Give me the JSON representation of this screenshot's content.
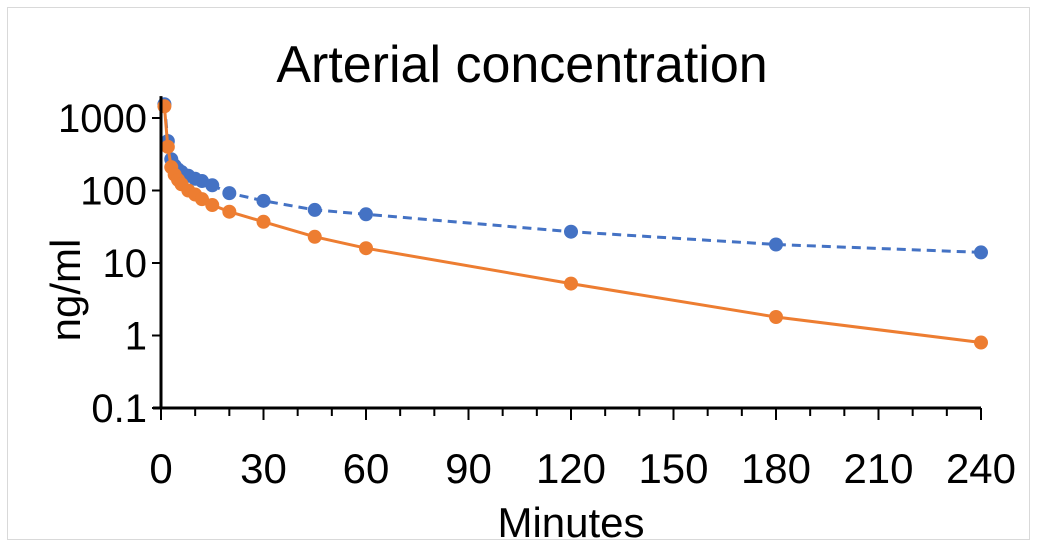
{
  "chart_data": {
    "type": "line",
    "title": "Arterial concentration",
    "xlabel": "Minutes",
    "ylabel": "ng/ml",
    "x_ticks": [
      0,
      30,
      60,
      90,
      120,
      150,
      180,
      210,
      240
    ],
    "y_ticks": [
      "0.1",
      "1",
      "10",
      "100",
      "1000"
    ],
    "xlim": [
      0,
      240
    ],
    "ylim": [
      0.1,
      2000
    ],
    "y_scale": "log",
    "grid": false,
    "legend": "none",
    "series": [
      {
        "color": "#4472c4",
        "line_style": "dashed",
        "x": [
          1,
          2,
          3,
          4,
          5,
          6,
          8,
          10,
          12,
          15,
          20,
          30,
          45,
          60,
          120,
          180,
          240
        ],
        "y": [
          1550,
          480,
          270,
          220,
          195,
          180,
          160,
          145,
          135,
          118,
          92,
          72,
          54,
          47,
          27,
          18,
          14
        ]
      },
      {
        "color": "#ed7d31",
        "line_style": "solid",
        "x": [
          1,
          2,
          3,
          4,
          5,
          6,
          8,
          10,
          12,
          15,
          20,
          30,
          45,
          60,
          120,
          180,
          240
        ],
        "y": [
          1450,
          400,
          210,
          165,
          140,
          122,
          100,
          88,
          76,
          63,
          51,
          37,
          23,
          16,
          5.2,
          1.8,
          0.8
        ]
      }
    ]
  }
}
